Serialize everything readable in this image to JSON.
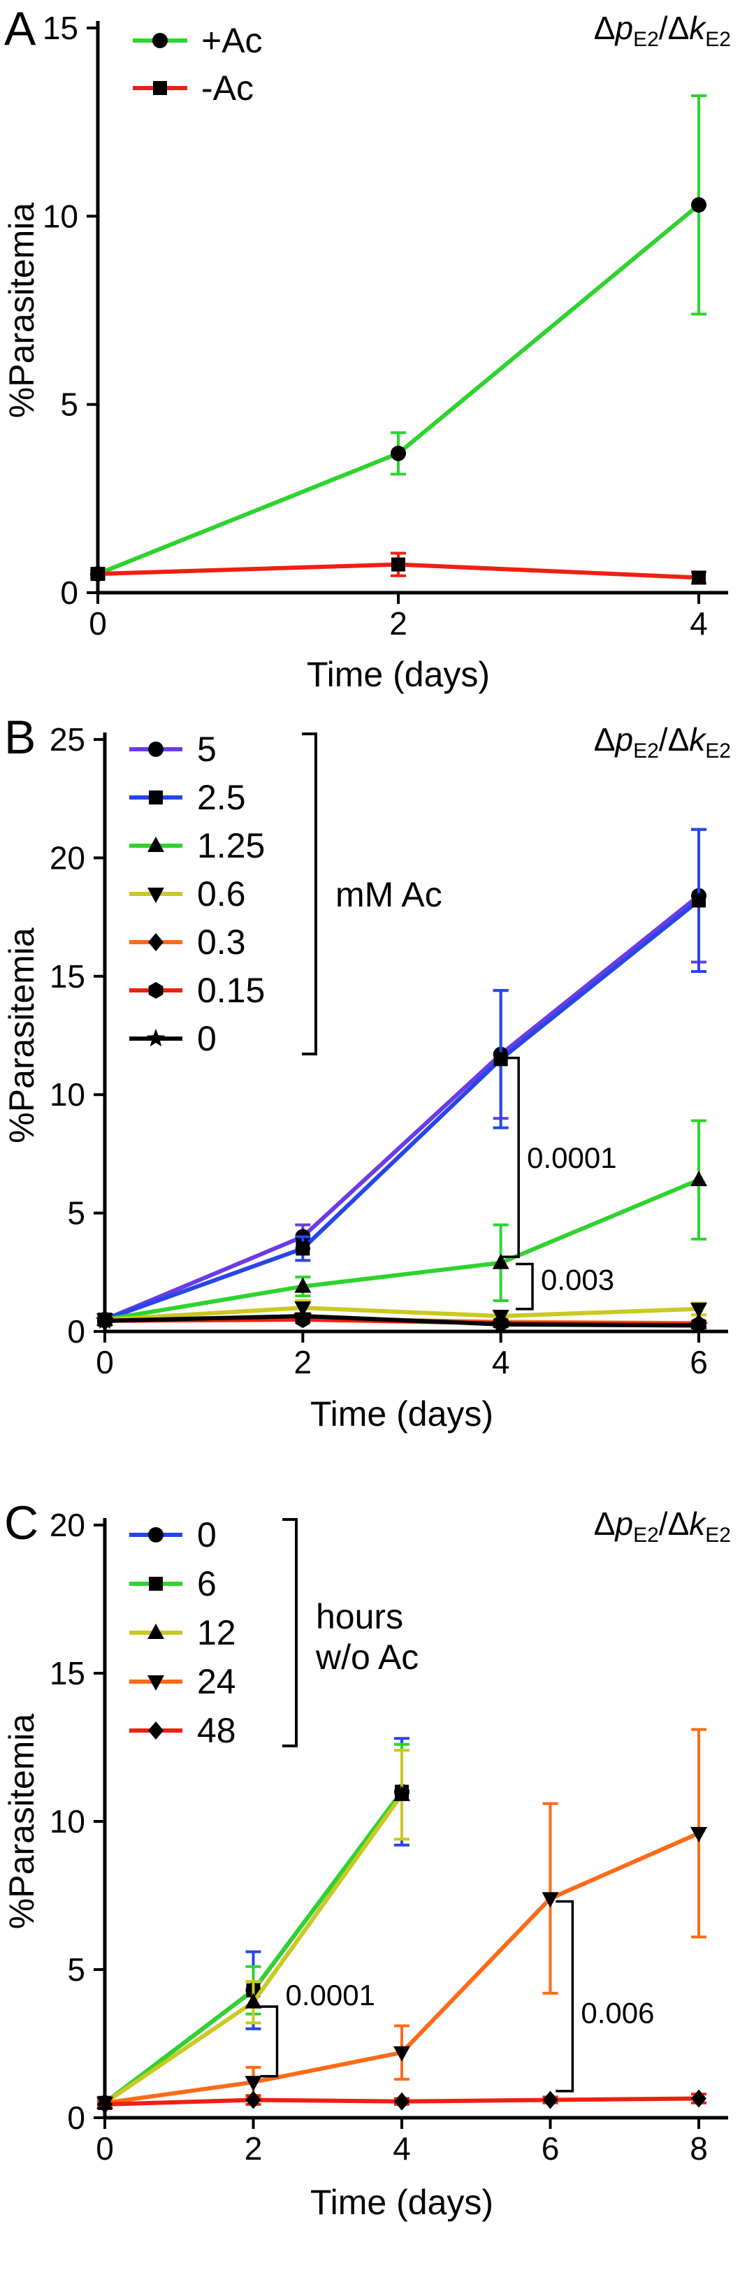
{
  "figure": {
    "background": "#ffffff"
  },
  "chart_data": [
    {
      "type": "line",
      "panel_label": "A",
      "annotation": {
        "text": "ΔpE2/ΔkE2",
        "parts": [
          {
            "t": "Δ"
          },
          {
            "t": "p",
            "italic": true
          },
          {
            "t": "E2",
            "sub": true
          },
          {
            "t": "/"
          },
          {
            "t": "Δ"
          },
          {
            "t": "k",
            "italic": true
          },
          {
            "t": "E2",
            "sub": true
          }
        ]
      },
      "xlabel": "Time (days)",
      "ylabel": "%Parasitemia",
      "xlim": [
        0,
        4
      ],
      "xticks": [
        0,
        2,
        4
      ],
      "ylim": [
        0,
        15
      ],
      "yticks": [
        0,
        5,
        10,
        15
      ],
      "grid": false,
      "legend_position": "top-left",
      "series": [
        {
          "name": "+Ac",
          "color": "#2ed32e",
          "marker": "circle",
          "x": [
            0,
            2,
            4
          ],
          "y": [
            0.5,
            3.7,
            10.3
          ],
          "err": [
            0.15,
            0.55,
            2.9
          ]
        },
        {
          "name": "-Ac",
          "color": "#ee2012",
          "marker": "square",
          "x": [
            0,
            2,
            4
          ],
          "y": [
            0.5,
            0.75,
            0.4
          ],
          "err": [
            0.1,
            0.3,
            0.15
          ]
        }
      ],
      "pvalues": []
    },
    {
      "type": "line",
      "panel_label": "B",
      "annotation": {
        "text": "ΔpE2/ΔkE2",
        "parts": [
          {
            "t": "Δ"
          },
          {
            "t": "p",
            "italic": true
          },
          {
            "t": "E2",
            "sub": true
          },
          {
            "t": "/"
          },
          {
            "t": "Δ"
          },
          {
            "t": "k",
            "italic": true
          },
          {
            "t": "E2",
            "sub": true
          }
        ]
      },
      "xlabel": "Time (days)",
      "ylabel": "%Parasitemia",
      "xlim": [
        0,
        6
      ],
      "xticks": [
        0,
        2,
        4,
        6
      ],
      "ylim": [
        0,
        25
      ],
      "yticks": [
        0,
        5,
        10,
        15,
        20,
        25
      ],
      "grid": false,
      "legend_position": "top-left",
      "legend_group": {
        "lines": [
          "mM Ac"
        ]
      },
      "series": [
        {
          "name": "5",
          "color": "#6b3be6",
          "marker": "circle",
          "x": [
            0,
            2,
            4,
            6
          ],
          "y": [
            0.5,
            4.0,
            11.7,
            18.4
          ],
          "err": [
            0.1,
            0.5,
            2.7,
            2.8
          ]
        },
        {
          "name": "2.5",
          "color": "#2746e8",
          "marker": "square",
          "x": [
            0,
            2,
            4,
            6
          ],
          "y": [
            0.5,
            3.5,
            11.5,
            18.2
          ],
          "err": [
            0.1,
            0.5,
            2.9,
            3.0
          ]
        },
        {
          "name": "1.25",
          "color": "#2ed32e",
          "marker": "triangle-up",
          "x": [
            0,
            2,
            4,
            6
          ],
          "y": [
            0.5,
            1.9,
            2.9,
            6.4
          ],
          "err": [
            0.1,
            0.4,
            1.6,
            2.5
          ]
        },
        {
          "name": "0.6",
          "color": "#c9c922",
          "marker": "triangle-down",
          "x": [
            0,
            2,
            4,
            6
          ],
          "y": [
            0.5,
            1.0,
            0.65,
            0.95
          ],
          "err": [
            0.05,
            0.3,
            0.2,
            0.25
          ]
        },
        {
          "name": "0.3",
          "color": "#fd6b18",
          "marker": "diamond",
          "x": [
            0,
            2,
            4,
            6
          ],
          "y": [
            0.45,
            0.55,
            0.4,
            0.35
          ],
          "err": [
            0.05,
            0.15,
            0.1,
            0.1
          ]
        },
        {
          "name": "0.15",
          "color": "#ee2012",
          "marker": "hexagon",
          "x": [
            0,
            2,
            4,
            6
          ],
          "y": [
            0.45,
            0.5,
            0.35,
            0.3
          ],
          "err": [
            0.05,
            0.1,
            0.1,
            0.1
          ]
        },
        {
          "name": "0",
          "color": "#000000",
          "marker": "star",
          "x": [
            0,
            2,
            4,
            6
          ],
          "y": [
            0.45,
            0.65,
            0.3,
            0.25
          ],
          "err": [
            0.05,
            0.1,
            0.1,
            0.1
          ]
        }
      ],
      "pvalues": [
        {
          "label": "0.0001",
          "bracket_x": 4.18,
          "y_top": 11.55,
          "y_bottom": 3.15,
          "label_y": 6.9
        },
        {
          "label": "0.003",
          "bracket_x": 4.32,
          "y_top": 2.85,
          "y_bottom": 0.95,
          "label_y": 1.75
        }
      ]
    },
    {
      "type": "line",
      "panel_label": "C",
      "annotation": {
        "text": "ΔpE2/ΔkE2",
        "parts": [
          {
            "t": "Δ"
          },
          {
            "t": "p",
            "italic": true
          },
          {
            "t": "E2",
            "sub": true
          },
          {
            "t": "/"
          },
          {
            "t": "Δ"
          },
          {
            "t": "k",
            "italic": true
          },
          {
            "t": "E2",
            "sub": true
          }
        ]
      },
      "xlabel": "Time (days)",
      "ylabel": "%Parasitemia",
      "xlim": [
        0,
        8
      ],
      "xticks": [
        0,
        2,
        4,
        6,
        8
      ],
      "ylim": [
        0,
        20
      ],
      "yticks": [
        0,
        5,
        10,
        15,
        20
      ],
      "grid": false,
      "legend_position": "top-left",
      "legend_group": {
        "lines": [
          "hours",
          "w/o Ac"
        ]
      },
      "series": [
        {
          "name": "0",
          "color": "#2746e8",
          "marker": "circle",
          "x": [
            0,
            2,
            4
          ],
          "y": [
            0.5,
            4.3,
            11.0
          ],
          "err": [
            0.1,
            1.3,
            1.8
          ]
        },
        {
          "name": "6",
          "color": "#2ed32e",
          "marker": "square",
          "x": [
            0,
            2,
            4
          ],
          "y": [
            0.5,
            4.3,
            11.0
          ],
          "err": [
            0.1,
            0.8,
            1.6
          ]
        },
        {
          "name": "12",
          "color": "#c9c922",
          "marker": "triangle-up",
          "x": [
            0,
            2,
            4
          ],
          "y": [
            0.5,
            3.9,
            10.9
          ],
          "err": [
            0.1,
            0.7,
            1.5
          ]
        },
        {
          "name": "24",
          "color": "#fd6b18",
          "marker": "triangle-down",
          "x": [
            0,
            2,
            4,
            6,
            8
          ],
          "y": [
            0.5,
            1.2,
            2.2,
            7.4,
            9.6
          ],
          "err": [
            0.1,
            0.5,
            0.9,
            3.2,
            3.5
          ]
        },
        {
          "name": "48",
          "color": "#ee2012",
          "marker": "diamond",
          "x": [
            0,
            2,
            4,
            6,
            8
          ],
          "y": [
            0.45,
            0.6,
            0.55,
            0.6,
            0.65
          ],
          "err": [
            0.05,
            0.15,
            0.1,
            0.1,
            0.15
          ]
        }
      ],
      "pvalues": [
        {
          "label": "0.0001",
          "bracket_x": 2.32,
          "y_top": 3.75,
          "y_bottom": 1.4,
          "label_y": 3.8
        },
        {
          "label": "0.006",
          "bracket_x": 6.3,
          "y_top": 7.3,
          "y_bottom": 0.9,
          "label_y": 3.2
        }
      ]
    }
  ]
}
